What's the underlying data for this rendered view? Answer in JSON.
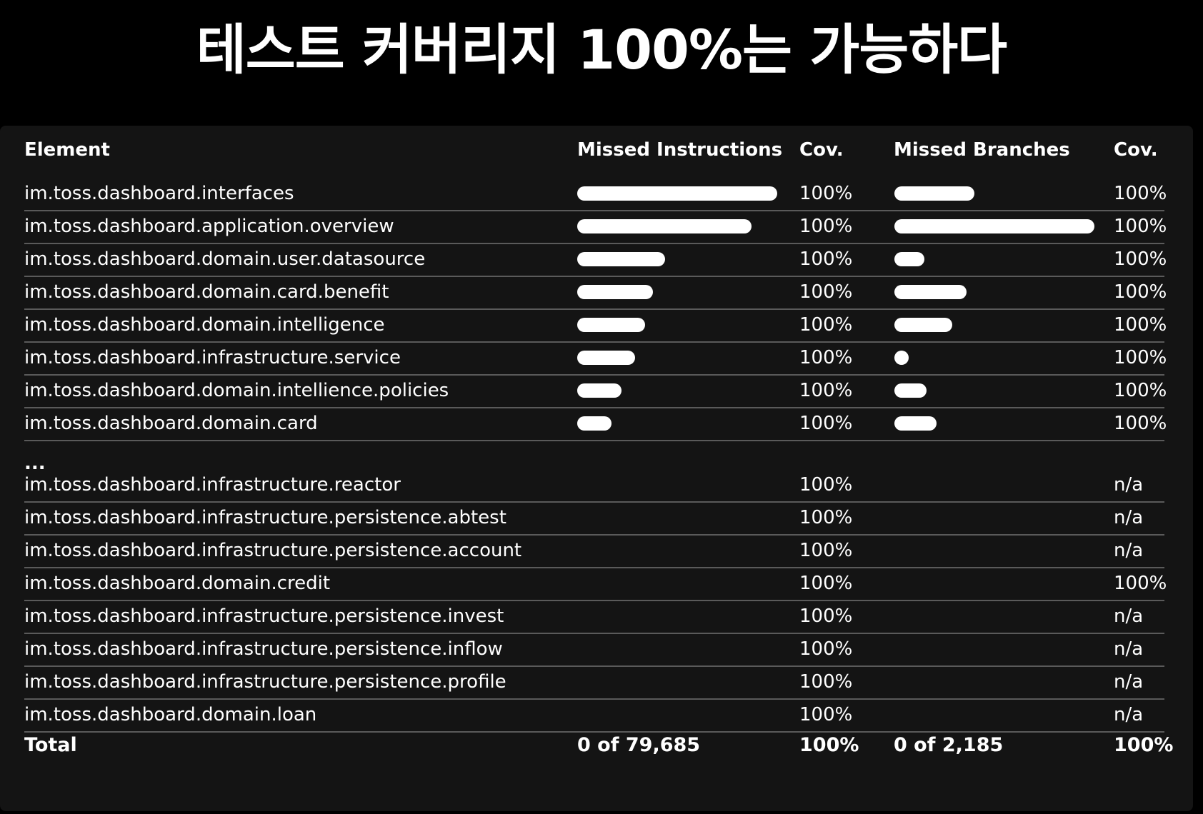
{
  "title": "테스트 커버리지 100%는 가능하다",
  "headers": {
    "element": "Element",
    "missed_instructions": "Missed Instructions",
    "cov1": "Cov.",
    "missed_branches": "Missed Branches",
    "cov2": "Cov."
  },
  "rows_top": [
    {
      "element": "im.toss.dashboard.interfaces",
      "cov1": "100%",
      "cov2": "100%",
      "mi_fraction": 1.0,
      "mb_fraction": 0.4
    },
    {
      "element": "im.toss.dashboard.application.overview",
      "cov1": "100%",
      "cov2": "100%",
      "mi_fraction": 0.87,
      "mb_fraction": 1.0
    },
    {
      "element": "im.toss.dashboard.domain.user.datasource",
      "cov1": "100%",
      "cov2": "100%",
      "mi_fraction": 0.44,
      "mb_fraction": 0.15
    },
    {
      "element": "im.toss.dashboard.domain.card.benefit",
      "cov1": "100%",
      "cov2": "100%",
      "mi_fraction": 0.38,
      "mb_fraction": 0.36
    },
    {
      "element": "im.toss.dashboard.domain.intelligence",
      "cov1": "100%",
      "cov2": "100%",
      "mi_fraction": 0.34,
      "mb_fraction": 0.29
    },
    {
      "element": "im.toss.dashboard.infrastructure.service",
      "cov1": "100%",
      "cov2": "100%",
      "mi_fraction": 0.29,
      "mb_fraction": 0.07
    },
    {
      "element": "im.toss.dashboard.domain.intellience.policies",
      "cov1": "100%",
      "cov2": "100%",
      "mi_fraction": 0.22,
      "mb_fraction": 0.16
    },
    {
      "element": "im.toss.dashboard.domain.card",
      "cov1": "100%",
      "cov2": "100%",
      "mi_fraction": 0.17,
      "mb_fraction": 0.21
    }
  ],
  "ellipsis": "...",
  "rows_bottom": [
    {
      "element": "im.toss.dashboard.infrastructure.reactor",
      "cov1": "100%",
      "cov2": "n/a"
    },
    {
      "element": "im.toss.dashboard.infrastructure.persistence.abtest",
      "cov1": "100%",
      "cov2": "n/a"
    },
    {
      "element": "im.toss.dashboard.infrastructure.persistence.account",
      "cov1": "100%",
      "cov2": "n/a"
    },
    {
      "element": "im.toss.dashboard.domain.credit",
      "cov1": "100%",
      "cov2": "100%"
    },
    {
      "element": "im.toss.dashboard.infrastructure.persistence.invest",
      "cov1": "100%",
      "cov2": "n/a"
    },
    {
      "element": "im.toss.dashboard.infrastructure.persistence.inflow",
      "cov1": "100%",
      "cov2": "n/a"
    },
    {
      "element": "im.toss.dashboard.infrastructure.persistence.profile",
      "cov1": "100%",
      "cov2": "n/a"
    },
    {
      "element": "im.toss.dashboard.domain.loan",
      "cov1": "100%",
      "cov2": "n/a"
    }
  ],
  "total": {
    "label": "Total",
    "missed_instructions": "0 of 79,685",
    "cov1": "100%",
    "missed_branches": "0 of 2,185",
    "cov2": "100%"
  }
}
